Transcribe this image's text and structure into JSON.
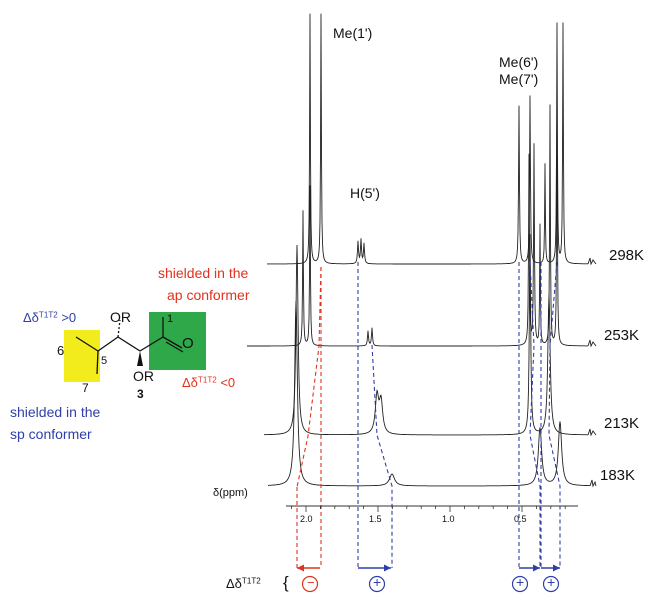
{
  "colors": {
    "red": "#e0321e",
    "blue": "#2e3fa8",
    "green": "#2fa84a",
    "yellow": "#f2ec1c",
    "spectrum": "#222222"
  },
  "structure": {
    "compound_number": "3",
    "ester_top": "OR",
    "ester_bottom": "OR",
    "carbonyl_o": "O",
    "atom_6": "6",
    "atom_5": "5",
    "atom_7": "7",
    "atom_1": "1",
    "red_note_line1": "shielded in the",
    "red_note_line2": "ap conformer",
    "blue_note_line1": "shielded in the",
    "blue_note_line2": "sp conformer",
    "blue_delta": {
      "base": "Δδ",
      "sup": "T1T2",
      "rel": " >0"
    },
    "red_delta": {
      "base": "Δδ",
      "sup": "T1T2",
      "rel": " <0"
    }
  },
  "spectra": {
    "labels": {
      "me1": "Me(1')",
      "h5": "H(5')",
      "me6": "Me(6')",
      "me7": "Me(7')"
    },
    "temperatures": [
      "298K",
      "253K",
      "213K",
      "183K"
    ],
    "axis_label": "δ(ppm)",
    "ticks": [
      "2.0",
      "1.5",
      "1.0",
      "0.5"
    ],
    "delta_row": {
      "base": "Δδ",
      "sup": "T1T2"
    },
    "signs": [
      "−",
      "+",
      "+",
      "+"
    ]
  }
}
